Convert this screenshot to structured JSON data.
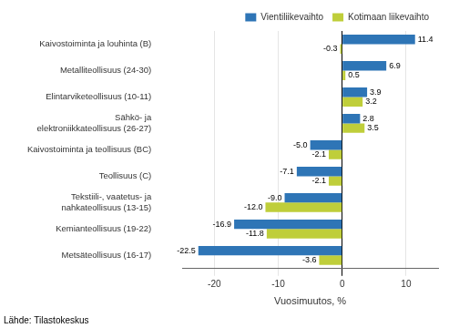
{
  "chart_data": {
    "type": "bar",
    "orientation": "horizontal",
    "categories": [
      "Metsäteollisuus (16-17)",
      "Kemianteollisuus (19-22)",
      "Tekstiili-, vaatetus- ja\nnahkateollisuus (13-15)",
      "Teollisuus (C)",
      "Kaivostoiminta ja teollisuus (BC)",
      "Sähkö- ja\nelektroniikkateollisuus (26-27)",
      "Elintarviketeollisuus (10-11)",
      "Metalliteollisuus (24-30)",
      "Kaivostoiminta ja louhinta (B)"
    ],
    "series": [
      {
        "name": "Vientiliikevaihto",
        "color": "#2E75B6",
        "values": [
          -22.5,
          -16.9,
          -9.0,
          -7.1,
          -5.0,
          2.8,
          3.9,
          6.9,
          11.4
        ],
        "value_labels": [
          "-22.5",
          "-16.9",
          "-9.0",
          "-7.1",
          "-5.0",
          "2.8",
          "3.9",
          "6.9",
          "11.4"
        ]
      },
      {
        "name": "Kotimaan liikevaihto",
        "color": "#BFCE3A",
        "values": [
          -3.6,
          -11.8,
          -12.0,
          -2.1,
          -2.1,
          3.5,
          3.2,
          0.5,
          -0.3
        ],
        "value_labels": [
          "-3.6",
          "-11.8",
          "-12.0",
          "-2.1",
          "-2.1",
          "3.5",
          "3.2",
          "0.5",
          "-0.3"
        ]
      }
    ],
    "xlabel": "Vuosimuutos, %",
    "xlim": [
      -25,
      15
    ],
    "xticks": [
      -20,
      -10,
      0,
      10
    ],
    "grid": true,
    "legend": "upper right",
    "data_labels": true,
    "annotations": [
      "Lähde: Tilastokeskus"
    ]
  }
}
